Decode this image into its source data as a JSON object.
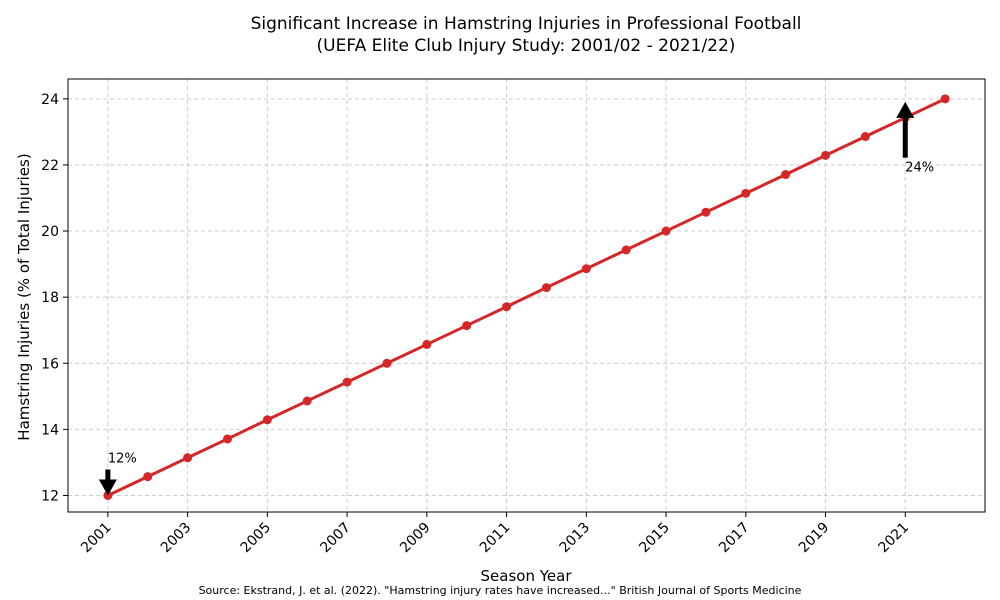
{
  "chart_data": {
    "type": "line",
    "title": "Significant Increase in Hamstring Injuries in Professional Football",
    "subtitle": "(UEFA Elite Club Injury Study: 2001/02 - 2021/22)",
    "xlabel": "Season Year",
    "ylabel": "Hamstring Injuries (% of Total Injuries)",
    "source": "Source: Ekstrand, J. et al. (2022). \"Hamstring injury rates have increased...\" British Journal of Sports Medicine",
    "xlim": [
      2000,
      2023
    ],
    "ylim": [
      11.5,
      24.6
    ],
    "x_ticks": [
      2001,
      2003,
      2005,
      2007,
      2009,
      2011,
      2013,
      2015,
      2017,
      2019,
      2021
    ],
    "y_ticks": [
      12,
      14,
      16,
      18,
      20,
      22,
      24
    ],
    "grid": true,
    "series": [
      {
        "color": "#d62728",
        "x": [
          2001,
          2002,
          2003,
          2004,
          2005,
          2006,
          2007,
          2008,
          2009,
          2010,
          2011,
          2012,
          2013,
          2014,
          2015,
          2016,
          2017,
          2018,
          2019,
          2020,
          2021,
          2022
        ],
        "y": [
          12.0,
          12.57,
          13.14,
          13.71,
          14.29,
          14.86,
          15.43,
          16.0,
          16.57,
          17.14,
          17.71,
          18.29,
          18.86,
          19.43,
          20.0,
          20.57,
          21.14,
          21.71,
          22.29,
          22.86,
          23.43,
          24.0
        ]
      }
    ],
    "annotations": [
      {
        "text": "12%",
        "x": 2001,
        "y": 12.0,
        "arrow": "down"
      },
      {
        "text": "24%",
        "x": 2021,
        "y": 23.43,
        "arrow": "up"
      }
    ]
  }
}
